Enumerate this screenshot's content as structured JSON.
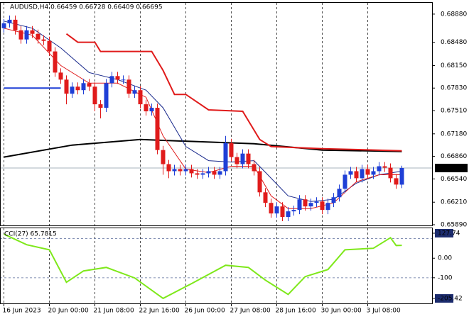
{
  "chart_data": [
    {
      "type": "candlestick",
      "title": "AUDUSD,H4  0.66459 0.66728 0.66409 0.66695",
      "xlim": [
        -0.625,
        75.375
      ],
      "ylim": [
        0.6588,
        0.6904
      ],
      "yticks": [
        {
          "value": 0.6888,
          "label": "0.68880"
        },
        {
          "value": 0.6848,
          "label": "0.68480"
        },
        {
          "value": 0.6815,
          "label": "0.68150"
        },
        {
          "value": 0.6783,
          "label": "0.67830"
        },
        {
          "value": 0.6751,
          "label": "0.67510"
        },
        {
          "value": 0.6718,
          "label": "0.67180"
        },
        {
          "value": 0.6686,
          "label": "0.66860"
        },
        {
          "value": 0.6654,
          "label": "0.66540"
        },
        {
          "value": 0.6621,
          "label": "0.66210"
        },
        {
          "value": 0.6589,
          "label": "0.65890"
        }
      ],
      "xticks": [
        {
          "value": 0,
          "label": "16 Jun 2023"
        },
        {
          "value": 8,
          "label": "20 Jun 00:00"
        },
        {
          "value": 16,
          "label": "21 Jun 08:00"
        },
        {
          "value": 24,
          "label": "22 Jun 16:00"
        },
        {
          "value": 32,
          "label": "26 Jun 00:00"
        },
        {
          "value": 40,
          "label": "27 Jun 08:00"
        },
        {
          "value": 48,
          "label": "28 Jun 16:00"
        },
        {
          "value": 56,
          "label": "30 Jun 00:00"
        },
        {
          "value": 64,
          "label": "3 Jul 08:00"
        }
      ],
      "grid": true,
      "up_color": "#1f3fd6",
      "down_color": "#e01b1b",
      "last_price": {
        "value": 0.66695,
        "label": "0.66695"
      },
      "open": [
        0.6868,
        0.6875,
        0.688,
        0.6865,
        0.6852,
        0.6865,
        0.686,
        0.6852,
        0.685,
        0.6835,
        0.6805,
        0.6795,
        0.6775,
        0.6785,
        0.678,
        0.679,
        0.6785,
        0.676,
        0.6755,
        0.679,
        0.68,
        0.6795,
        0.6795,
        0.6775,
        0.678,
        0.676,
        0.675,
        0.6755,
        0.6695,
        0.6675,
        0.6665,
        0.6668,
        0.6665,
        0.6668,
        0.6662,
        0.666,
        0.6662,
        0.6665,
        0.666,
        0.6665,
        0.6705,
        0.6685,
        0.6675,
        0.669,
        0.6675,
        0.6665,
        0.6635,
        0.662,
        0.6605,
        0.6615,
        0.66,
        0.6608,
        0.661,
        0.6625,
        0.6615,
        0.662,
        0.6622,
        0.661,
        0.662,
        0.6628,
        0.664,
        0.666,
        0.6665,
        0.6655,
        0.6668,
        0.666,
        0.6665,
        0.6672,
        0.667,
        0.6655,
        0.66459
      ],
      "high": [
        0.6881,
        0.6886,
        0.6886,
        0.6871,
        0.6871,
        0.6871,
        0.6866,
        0.6858,
        0.6856,
        0.6841,
        0.6811,
        0.6801,
        0.6791,
        0.6791,
        0.6796,
        0.6796,
        0.6791,
        0.6766,
        0.6796,
        0.6806,
        0.6806,
        0.6801,
        0.6801,
        0.6786,
        0.6786,
        0.6766,
        0.6761,
        0.6761,
        0.6701,
        0.6681,
        0.6674,
        0.6674,
        0.6674,
        0.6674,
        0.6668,
        0.6668,
        0.6671,
        0.6671,
        0.6671,
        0.6715,
        0.6711,
        0.6691,
        0.6696,
        0.6696,
        0.6681,
        0.6671,
        0.6641,
        0.6626,
        0.6621,
        0.6621,
        0.6614,
        0.6616,
        0.6631,
        0.6631,
        0.6626,
        0.6628,
        0.6628,
        0.6626,
        0.6634,
        0.6646,
        0.6666,
        0.6671,
        0.6671,
        0.6674,
        0.6674,
        0.6671,
        0.6678,
        0.6678,
        0.6676,
        0.6661,
        0.66728
      ],
      "low": [
        0.6862,
        0.6869,
        0.6859,
        0.6846,
        0.6846,
        0.6854,
        0.6846,
        0.6844,
        0.6829,
        0.6799,
        0.6789,
        0.676,
        0.6769,
        0.6774,
        0.6774,
        0.6779,
        0.675,
        0.674,
        0.6749,
        0.6784,
        0.6789,
        0.6789,
        0.6769,
        0.6769,
        0.6754,
        0.6744,
        0.6744,
        0.6689,
        0.666,
        0.6655,
        0.6659,
        0.6659,
        0.6659,
        0.6656,
        0.6654,
        0.6654,
        0.6656,
        0.6654,
        0.6654,
        0.6659,
        0.6679,
        0.6669,
        0.6669,
        0.6669,
        0.6659,
        0.6629,
        0.6614,
        0.6599,
        0.6599,
        0.6594,
        0.6594,
        0.6602,
        0.6604,
        0.6609,
        0.6609,
        0.6614,
        0.6604,
        0.6604,
        0.6614,
        0.6622,
        0.6634,
        0.6654,
        0.6649,
        0.6649,
        0.6654,
        0.6654,
        0.6659,
        0.6664,
        0.6649,
        0.664,
        0.66409
      ],
      "close": [
        0.6875,
        0.688,
        0.6865,
        0.6852,
        0.6865,
        0.686,
        0.6852,
        0.685,
        0.6835,
        0.6805,
        0.6795,
        0.6775,
        0.6785,
        0.678,
        0.679,
        0.6785,
        0.676,
        0.6755,
        0.679,
        0.68,
        0.6795,
        0.6795,
        0.6775,
        0.678,
        0.676,
        0.675,
        0.6755,
        0.6695,
        0.6675,
        0.6665,
        0.6668,
        0.6665,
        0.6668,
        0.6662,
        0.666,
        0.6662,
        0.6665,
        0.666,
        0.6665,
        0.6705,
        0.6685,
        0.6675,
        0.669,
        0.6675,
        0.6665,
        0.6635,
        0.662,
        0.6605,
        0.6615,
        0.66,
        0.6608,
        0.661,
        0.6625,
        0.6615,
        0.662,
        0.6622,
        0.661,
        0.662,
        0.6628,
        0.664,
        0.666,
        0.6665,
        0.6655,
        0.6668,
        0.666,
        0.6665,
        0.6672,
        0.667,
        0.6655,
        0.6646,
        0.66695
      ],
      "overlays": [
        {
          "color": "#000000",
          "width": 2,
          "x": [
            0,
            12,
            24,
            34,
            44,
            56,
            70
          ],
          "values": [
            0.6685,
            0.6702,
            0.671,
            0.6707,
            0.6704,
            0.6695,
            0.6693
          ]
        },
        {
          "color": "#e01b1b",
          "width": 2,
          "x": [
            11,
            13,
            13,
            16,
            17,
            26,
            28,
            30,
            32,
            36,
            42,
            45,
            47,
            56,
            70
          ],
          "values": [
            0.686,
            0.6848,
            0.6848,
            0.6848,
            0.6835,
            0.6835,
            0.6808,
            0.6774,
            0.6774,
            0.6752,
            0.675,
            0.671,
            0.67,
            0.6697,
            0.6694
          ]
        },
        {
          "color": "#1a2a8c",
          "width": 1,
          "x": [
            0,
            5,
            10,
            15,
            20,
            25,
            28,
            32,
            36,
            40,
            44,
            47,
            50,
            54,
            58,
            62,
            66,
            70
          ],
          "values": [
            0.6878,
            0.6868,
            0.684,
            0.6805,
            0.6795,
            0.678,
            0.6755,
            0.67,
            0.668,
            0.6678,
            0.668,
            0.6655,
            0.663,
            0.6622,
            0.6625,
            0.6648,
            0.666,
            0.6665
          ]
        },
        {
          "color": "#e01b1b",
          "width": 1,
          "x": [
            0,
            5,
            10,
            15,
            20,
            25,
            28,
            32,
            36,
            40,
            44,
            47,
            50,
            54,
            58,
            62,
            66,
            70
          ],
          "values": [
            0.6868,
            0.6858,
            0.6815,
            0.679,
            0.679,
            0.677,
            0.6715,
            0.6668,
            0.6663,
            0.6672,
            0.6672,
            0.663,
            0.6612,
            0.6612,
            0.662,
            0.665,
            0.666,
            0.666
          ]
        },
        {
          "color": "#1f3fd6",
          "width": 2,
          "x": [
            0,
            10
          ],
          "values": [
            0.6783,
            0.6783
          ]
        }
      ]
    },
    {
      "type": "line",
      "title": "CCI(27) 65.7815",
      "color": "#7ee81a",
      "ylim": [
        -231,
        153
      ],
      "yticks": [
        127.74,
        {
          "value": 0,
          "label": "0.00"
        },
        -100,
        -205.42
      ],
      "levels": [
        100,
        -100
      ],
      "x": [
        0,
        4,
        8,
        11,
        14,
        18,
        23,
        28,
        33,
        39,
        43,
        46,
        50,
        53,
        57,
        60,
        65,
        68,
        69,
        70
      ],
      "values": [
        123,
        69,
        43,
        -123,
        -65,
        -47,
        -101,
        -205.42,
        -130,
        -36,
        -47,
        -112,
        -185,
        -94,
        -58,
        43,
        51,
        105,
        65,
        65.7815
      ]
    }
  ]
}
